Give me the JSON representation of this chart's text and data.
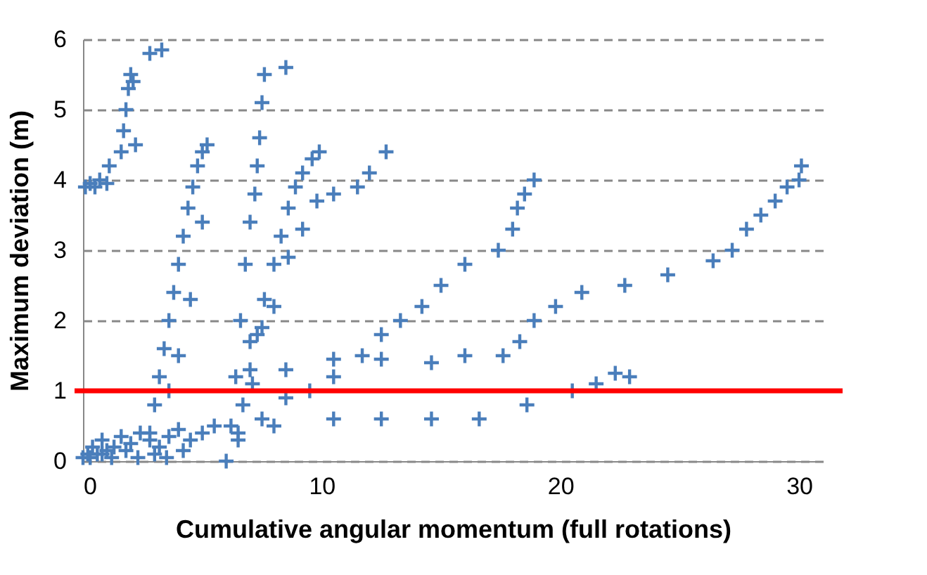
{
  "chart_data": {
    "type": "scatter",
    "xlabel": "Cumulative angular momentum (full rotations)",
    "ylabel": "Maximum deviation (m)",
    "xlim": [
      0,
      31
    ],
    "ylim": [
      0,
      6
    ],
    "xticks": [
      0,
      10,
      20,
      30
    ],
    "yticks": [
      0,
      1,
      2,
      3,
      4,
      5,
      6
    ],
    "grid": "y",
    "marker": "cross",
    "ref_lines": [
      {
        "axis": "y",
        "value": 1,
        "color": "#ff0000"
      }
    ],
    "series": [
      {
        "color": "#4a7ebb",
        "x": [
          0,
          0.2,
          0.4,
          0.6,
          0.8,
          1.0,
          1.3,
          1.6,
          2.0,
          2.4,
          2.8,
          3.2,
          3.6,
          4.0,
          4.5,
          5.0,
          5.5,
          0.3,
          0.8,
          1.2,
          1.8,
          2.3,
          3.0,
          3.5,
          4.2,
          0.1,
          0.3,
          0.5,
          0.7,
          1.0,
          1.1,
          1.6,
          1.7,
          1.8,
          1.9,
          2.0,
          2.1,
          2.2,
          2.8,
          3.3,
          2.8,
          3.0,
          3.2,
          3.4,
          3.6,
          3.8,
          4.0,
          4.2,
          4.4,
          4.6,
          4.8,
          5.0,
          5.2,
          3.6,
          4.0,
          4.5,
          5.0,
          6.0,
          6.2,
          6.4,
          6.6,
          6.8,
          7.0,
          7.2,
          7.3,
          7.4,
          7.5,
          7.6,
          8.5,
          6.7,
          7.0,
          7.3,
          7.6,
          8.0,
          8.3,
          8.6,
          8.9,
          9.2,
          9.6,
          9.9,
          7.0,
          7.5,
          8.0,
          8.6,
          9.2,
          9.8,
          10.5,
          11.5,
          12.0,
          12.7,
          6.5,
          7.5,
          8.5,
          9.5,
          10.5,
          11.7,
          12.5,
          13.3,
          14.2,
          15.0,
          16.0,
          17.4,
          18.0,
          18.2,
          18.5,
          18.9,
          7.1,
          8.5,
          10.5,
          12.5,
          14.6,
          16.0,
          17.6,
          18.3,
          18.9,
          19.8,
          20.9,
          22.7,
          24.5,
          26.4,
          27.2,
          27.8,
          28.4,
          29.0,
          29.5,
          30.0,
          30.1,
          6.5,
          8.0,
          10.5,
          12.5,
          14.6,
          16.6,
          18.6,
          20.5,
          21.5,
          22.3,
          22.9
        ],
        "values": [
          0.05,
          0.1,
          0.2,
          0.1,
          0.3,
          0.15,
          0.2,
          0.35,
          0.25,
          0.4,
          0.3,
          0.2,
          0.35,
          0.45,
          0.3,
          0.4,
          0.5,
          0.05,
          0.1,
          0.05,
          0.15,
          0.05,
          0.1,
          0.05,
          0.15,
          3.9,
          3.95,
          3.9,
          4.0,
          3.95,
          4.2,
          4.4,
          4.7,
          5.0,
          5.3,
          5.5,
          5.4,
          4.5,
          5.8,
          5.85,
          0.4,
          0.8,
          1.2,
          1.6,
          2.0,
          2.4,
          2.8,
          3.2,
          3.6,
          3.9,
          4.2,
          4.4,
          4.5,
          1.0,
          1.5,
          2.3,
          3.4,
          0.0,
          0.5,
          1.2,
          2.0,
          2.8,
          3.4,
          3.8,
          4.2,
          4.6,
          5.1,
          5.5,
          5.6,
          0.8,
          1.3,
          1.8,
          2.3,
          2.8,
          3.2,
          3.6,
          3.9,
          4.1,
          4.3,
          4.4,
          1.7,
          1.9,
          2.2,
          2.9,
          3.3,
          3.7,
          3.8,
          3.9,
          4.1,
          4.4,
          0.3,
          0.6,
          0.9,
          1.0,
          1.2,
          1.5,
          1.8,
          2.0,
          2.2,
          2.5,
          2.8,
          3.0,
          3.3,
          3.6,
          3.8,
          4.0,
          1.1,
          1.3,
          1.45,
          1.45,
          1.4,
          1.5,
          1.5,
          1.7,
          2.0,
          2.2,
          2.4,
          2.5,
          2.65,
          2.85,
          3.0,
          3.3,
          3.5,
          3.7,
          3.9,
          4.0,
          4.2,
          0.4,
          0.5,
          0.6,
          0.6,
          0.6,
          0.6,
          0.8,
          1.0,
          1.1,
          1.25,
          1.2
        ]
      }
    ]
  }
}
